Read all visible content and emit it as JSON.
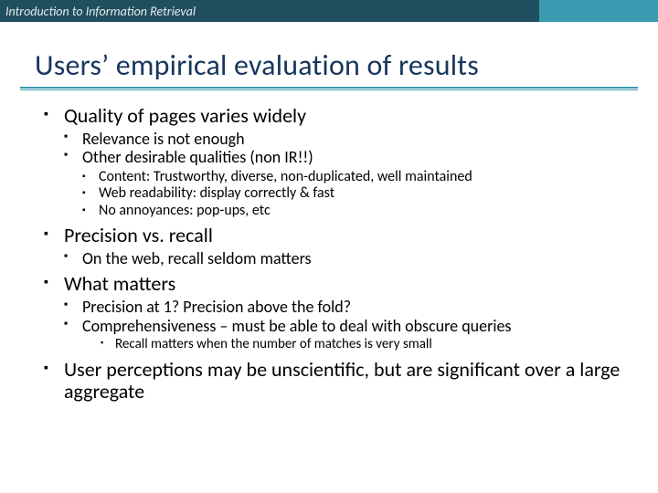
{
  "header": {
    "course": "Introduction to Information Retrieval"
  },
  "title": "Users’ empirical evaluation of results",
  "colors": {
    "header_bg": "#1f4e5f",
    "header_accent": "#3a9bb0",
    "title_color": "#17365d",
    "underline_color": "#3a9bb0",
    "bullet_color": "#000000",
    "background": "#ffffff"
  },
  "bullets": {
    "b1": {
      "text": "Quality of pages varies widely",
      "sub": {
        "s1": "Relevance is not enough",
        "s2": "Other desirable qualities (non IR!!)",
        "s2sub": {
          "t1": "Content: Trustworthy, diverse, non-duplicated, well maintained",
          "t2": "Web readability: display correctly & fast",
          "t3": "No annoyances: pop-ups, etc"
        }
      }
    },
    "b2": {
      "text": "Precision vs. recall",
      "sub": {
        "s1": "On the web, recall seldom matters"
      }
    },
    "b3": {
      "text": "What matters",
      "sub": {
        "s1": "Precision at 1? Precision above the fold?",
        "s2": "Comprehensiveness – must be able to deal with obscure queries",
        "s2sub": {
          "t1": "Recall matters when the number of matches is very small"
        }
      }
    },
    "b4": {
      "text": "User perceptions may be unscientific, but are significant over a large aggregate"
    }
  }
}
